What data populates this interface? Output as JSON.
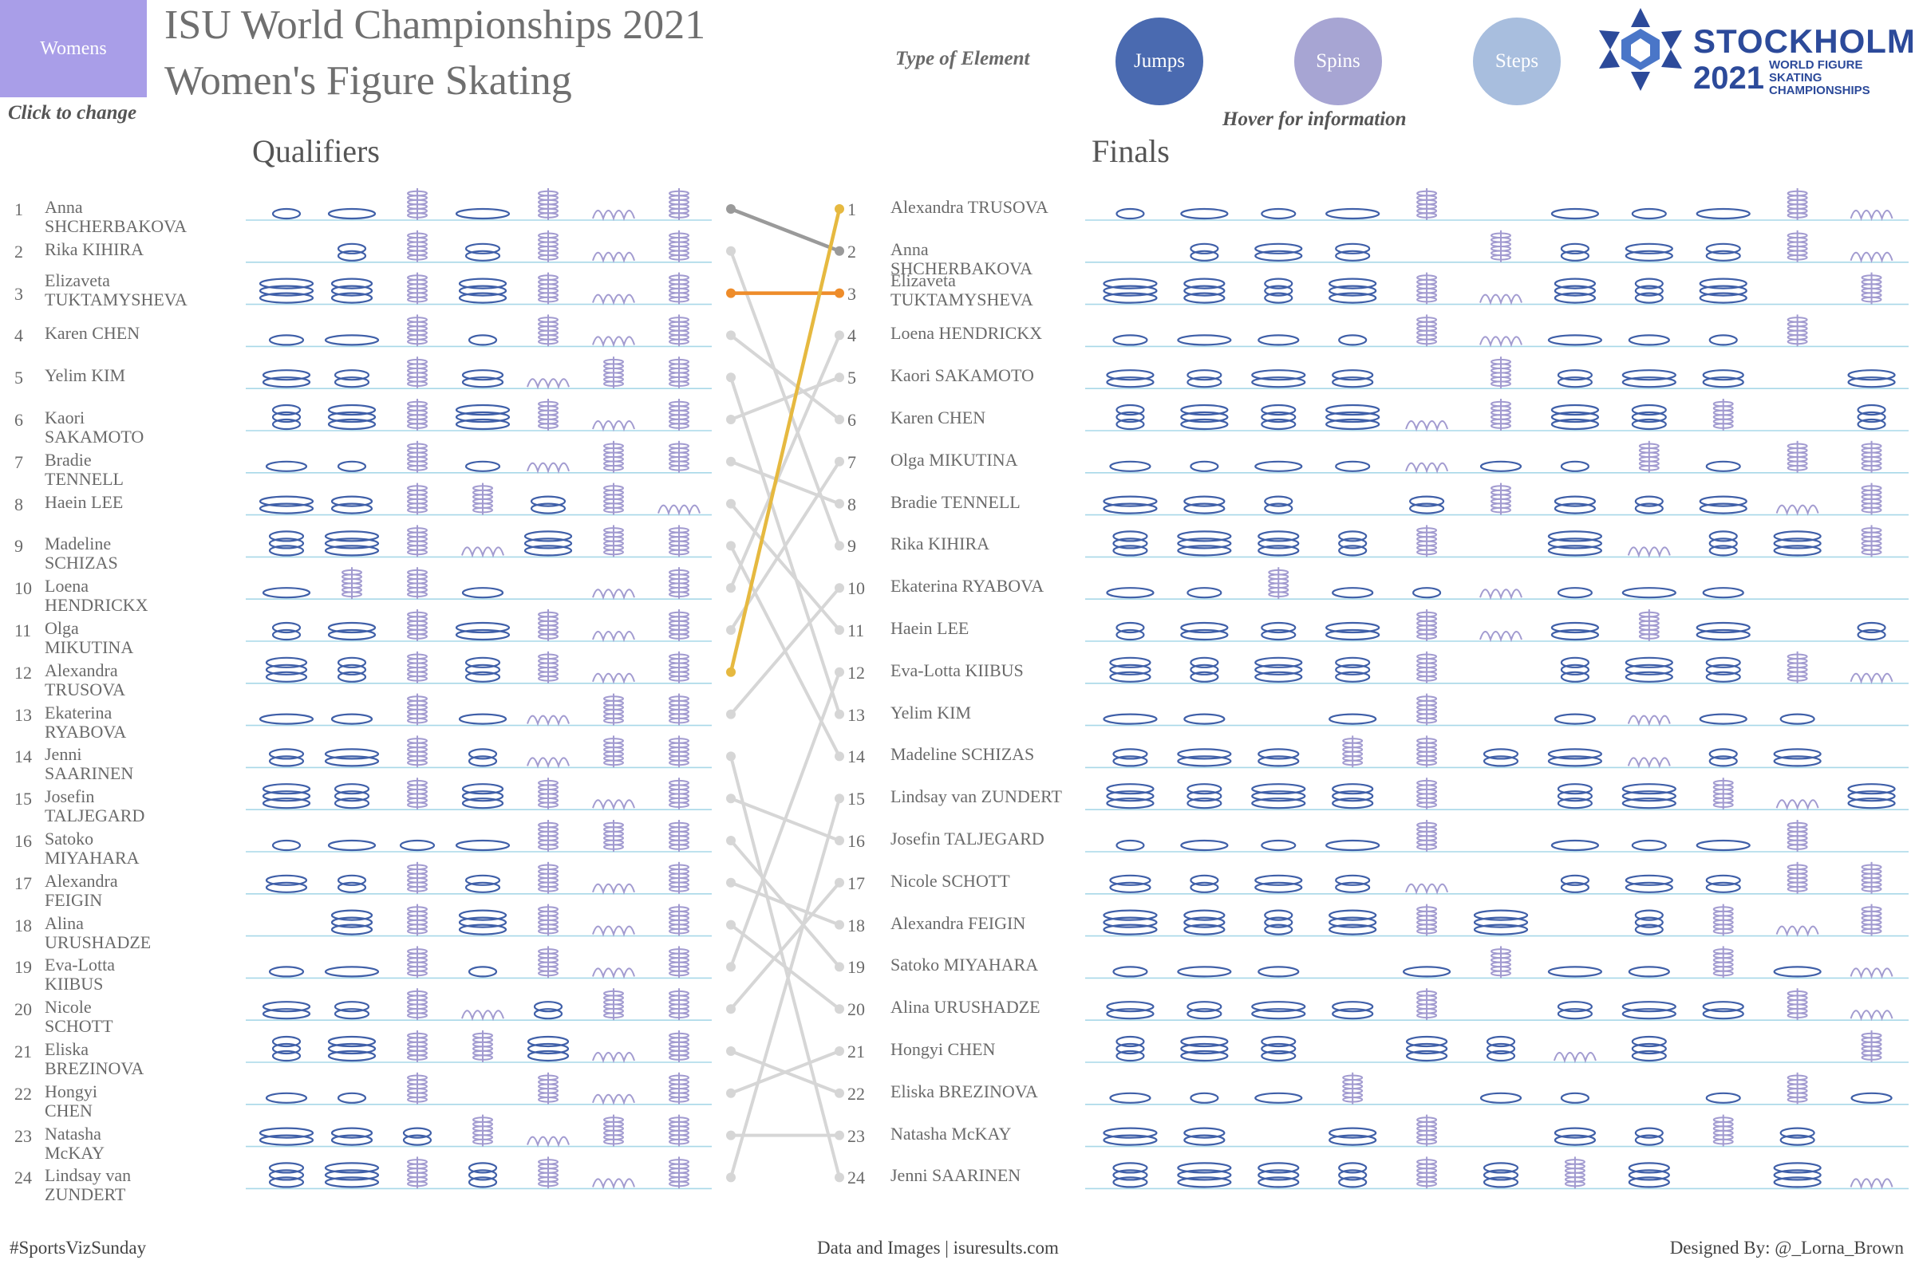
{
  "toggle_label": "Womens",
  "title_line1": "ISU World Championships 2021",
  "title_line2": "Women's Figure Skating",
  "click_hint": "Click to change",
  "type_of_element_label": "Type of Element",
  "legend": [
    {
      "label": "Jumps",
      "color": "#4a6ab0"
    },
    {
      "label": "Spins",
      "color": "#a7a5d3"
    },
    {
      "label": "Steps",
      "color": "#a8bede"
    }
  ],
  "hover_hint": "Hover for information",
  "logo": {
    "city": "STOCKHOLM",
    "year": "2021",
    "sub1": "WORLD FIGURE SKATING",
    "sub2": "CHAMPIONSHIPS"
  },
  "qualifiers_title": "Qualifiers",
  "finals_title": "Finals",
  "colors": {
    "jump": "#3f5fa8",
    "spin": "#a29bd0",
    "baseline": "#a8d8e8",
    "highlight_gold": "#e6b940",
    "highlight_orange": "#ee8c2a",
    "highlight_gray": "#9a9a9a",
    "connector": "#d6d6d6"
  },
  "qualifiers": [
    {
      "rank": 1,
      "name": "Anna SHCHERBAKOVA"
    },
    {
      "rank": 2,
      "name": "Rika KIHIRA"
    },
    {
      "rank": 3,
      "name": "Elizaveta TUKTAMYSHEVA"
    },
    {
      "rank": 4,
      "name": "Karen CHEN"
    },
    {
      "rank": 5,
      "name": "Yelim KIM"
    },
    {
      "rank": 6,
      "name": "Kaori SAKAMOTO"
    },
    {
      "rank": 7,
      "name": "Bradie TENNELL"
    },
    {
      "rank": 8,
      "name": "Haein LEE"
    },
    {
      "rank": 9,
      "name": "Madeline SCHIZAS"
    },
    {
      "rank": 10,
      "name": "Loena HENDRICKX"
    },
    {
      "rank": 11,
      "name": "Olga MIKUTINA"
    },
    {
      "rank": 12,
      "name": "Alexandra TRUSOVA"
    },
    {
      "rank": 13,
      "name": "Ekaterina RYABOVA"
    },
    {
      "rank": 14,
      "name": "Jenni SAARINEN"
    },
    {
      "rank": 15,
      "name": "Josefin TALJEGARD"
    },
    {
      "rank": 16,
      "name": "Satoko MIYAHARA"
    },
    {
      "rank": 17,
      "name": "Alexandra FEIGIN"
    },
    {
      "rank": 18,
      "name": "Alina URUSHADZE"
    },
    {
      "rank": 19,
      "name": "Eva-Lotta KIIBUS"
    },
    {
      "rank": 20,
      "name": "Nicole SCHOTT"
    },
    {
      "rank": 21,
      "name": "Eliska BREZINOVA"
    },
    {
      "rank": 22,
      "name": "Hongyi CHEN"
    },
    {
      "rank": 23,
      "name": "Natasha McKAY"
    },
    {
      "rank": 24,
      "name": "Lindsay van ZUNDERT"
    }
  ],
  "finals": [
    {
      "rank": 1,
      "name": "Alexandra TRUSOVA"
    },
    {
      "rank": 2,
      "name": "Anna SHCHERBAKOVA"
    },
    {
      "rank": 3,
      "name": "Elizaveta TUKTAMYSHEVA"
    },
    {
      "rank": 4,
      "name": "Loena HENDRICKX"
    },
    {
      "rank": 5,
      "name": "Kaori SAKAMOTO"
    },
    {
      "rank": 6,
      "name": "Karen CHEN"
    },
    {
      "rank": 7,
      "name": "Olga MIKUTINA"
    },
    {
      "rank": 8,
      "name": "Bradie TENNELL"
    },
    {
      "rank": 9,
      "name": "Rika KIHIRA"
    },
    {
      "rank": 10,
      "name": "Ekaterina RYABOVA"
    },
    {
      "rank": 11,
      "name": "Haein LEE"
    },
    {
      "rank": 12,
      "name": "Eva-Lotta KIIBUS"
    },
    {
      "rank": 13,
      "name": "Yelim KIM"
    },
    {
      "rank": 14,
      "name": "Madeline SCHIZAS"
    },
    {
      "rank": 15,
      "name": "Lindsay van ZUNDERT"
    },
    {
      "rank": 16,
      "name": "Josefin TALJEGARD"
    },
    {
      "rank": 17,
      "name": "Nicole SCHOTT"
    },
    {
      "rank": 18,
      "name": "Alexandra FEIGIN"
    },
    {
      "rank": 19,
      "name": "Satoko MIYAHARA"
    },
    {
      "rank": 20,
      "name": "Alina URUSHADZE"
    },
    {
      "rank": 21,
      "name": "Hongyi CHEN"
    },
    {
      "rank": 22,
      "name": "Eliska BREZINOVA"
    },
    {
      "rank": 23,
      "name": "Natasha McKAY"
    },
    {
      "rank": 24,
      "name": "Jenni SAARINEN"
    }
  ],
  "qualifier_elements": [
    [
      "j",
      "j",
      "s",
      "j",
      "s",
      "t",
      "s"
    ],
    [
      "",
      "j",
      "s",
      "j",
      "s",
      "t",
      "s"
    ],
    [
      "j",
      "j",
      "s",
      "j",
      "s",
      "t",
      "s"
    ],
    [
      "j",
      "j",
      "s",
      "j",
      "s",
      "t",
      "s"
    ],
    [
      "j",
      "j",
      "s",
      "j",
      "t",
      "s",
      "s"
    ],
    [
      "j",
      "j",
      "s",
      "j",
      "s",
      "t",
      "s"
    ],
    [
      "j",
      "j",
      "s",
      "j",
      "t",
      "s",
      "s"
    ],
    [
      "j",
      "j",
      "s",
      "s",
      "j",
      "s",
      "t"
    ],
    [
      "j",
      "j",
      "s",
      "t",
      "j",
      "s",
      "s"
    ],
    [
      "j",
      "s",
      "s",
      "j",
      "",
      "t",
      "s"
    ],
    [
      "j",
      "j",
      "s",
      "j",
      "s",
      "t",
      "s"
    ],
    [
      "j",
      "j",
      "s",
      "j",
      "s",
      "t",
      "s"
    ],
    [
      "j",
      "j",
      "s",
      "j",
      "t",
      "s",
      "s"
    ],
    [
      "j",
      "j",
      "s",
      "j",
      "t",
      "s",
      "s"
    ],
    [
      "j",
      "j",
      "s",
      "j",
      "s",
      "t",
      "s"
    ],
    [
      "j",
      "j",
      "j",
      "j",
      "s",
      "s",
      "s"
    ],
    [
      "j",
      "j",
      "s",
      "j",
      "s",
      "t",
      "s"
    ],
    [
      "",
      "j",
      "s",
      "j",
      "s",
      "t",
      "s"
    ],
    [
      "j",
      "j",
      "s",
      "j",
      "s",
      "t",
      "s"
    ],
    [
      "j",
      "j",
      "s",
      "t",
      "j",
      "s",
      "s"
    ],
    [
      "j",
      "j",
      "s",
      "s",
      "j",
      "t",
      "s"
    ],
    [
      "j",
      "j",
      "s",
      "",
      "s",
      "t",
      "s"
    ],
    [
      "j",
      "j",
      "j",
      "s",
      "t",
      "s",
      "s"
    ],
    [
      "j",
      "j",
      "s",
      "j",
      "s",
      "t",
      "s"
    ]
  ],
  "final_elements": [
    [
      "j",
      "j",
      "j",
      "j",
      "s",
      "",
      "j",
      "j",
      "j",
      "s",
      "t"
    ],
    [
      "",
      "j",
      "j",
      "j",
      "",
      "s",
      "j",
      "j",
      "j",
      "s",
      "t"
    ],
    [
      "j",
      "j",
      "j",
      "j",
      "s",
      "t",
      "j",
      "j",
      "j",
      "",
      "s"
    ],
    [
      "j",
      "j",
      "j",
      "j",
      "s",
      "t",
      "j",
      "j",
      "j",
      "s",
      ""
    ],
    [
      "j",
      "j",
      "j",
      "j",
      "",
      "s",
      "j",
      "j",
      "j",
      "",
      "j"
    ],
    [
      "j",
      "j",
      "j",
      "j",
      "t",
      "s",
      "j",
      "j",
      "s",
      "",
      "j"
    ],
    [
      "j",
      "j",
      "j",
      "j",
      "t",
      "j",
      "j",
      "s",
      "j",
      "s",
      "s"
    ],
    [
      "j",
      "j",
      "j",
      "",
      "j",
      "s",
      "j",
      "j",
      "j",
      "t",
      "s"
    ],
    [
      "j",
      "j",
      "j",
      "j",
      "s",
      "",
      "j",
      "t",
      "j",
      "j",
      "s"
    ],
    [
      "j",
      "j",
      "s",
      "j",
      "j",
      "t",
      "j",
      "j",
      "j",
      "",
      ""
    ],
    [
      "j",
      "j",
      "j",
      "j",
      "s",
      "t",
      "j",
      "s",
      "j",
      "",
      "j"
    ],
    [
      "j",
      "j",
      "j",
      "j",
      "s",
      "",
      "j",
      "j",
      "j",
      "s",
      "t"
    ],
    [
      "j",
      "j",
      "",
      "j",
      "s",
      "",
      "j",
      "t",
      "j",
      "j",
      ""
    ],
    [
      "j",
      "j",
      "j",
      "s",
      "s",
      "j",
      "j",
      "t",
      "j",
      "j",
      ""
    ],
    [
      "j",
      "j",
      "j",
      "j",
      "s",
      "",
      "j",
      "j",
      "s",
      "t",
      "j"
    ],
    [
      "j",
      "j",
      "j",
      "j",
      "s",
      "",
      "j",
      "j",
      "j",
      "s",
      ""
    ],
    [
      "j",
      "j",
      "j",
      "j",
      "t",
      "",
      "j",
      "j",
      "j",
      "s",
      "s"
    ],
    [
      "j",
      "j",
      "j",
      "j",
      "s",
      "j",
      "",
      "j",
      "s",
      "t",
      "s"
    ],
    [
      "j",
      "j",
      "j",
      "",
      "j",
      "s",
      "j",
      "j",
      "s",
      "j",
      "t"
    ],
    [
      "j",
      "j",
      "j",
      "j",
      "s",
      "",
      "j",
      "j",
      "j",
      "s",
      "t"
    ],
    [
      "j",
      "j",
      "j",
      "",
      "j",
      "j",
      "t",
      "j",
      "",
      "",
      "s"
    ],
    [
      "j",
      "j",
      "j",
      "s",
      "",
      "j",
      "j",
      "",
      "j",
      "s",
      "j"
    ],
    [
      "j",
      "j",
      "",
      "j",
      "s",
      "",
      "j",
      "j",
      "s",
      "j",
      ""
    ],
    [
      "j",
      "j",
      "j",
      "j",
      "s",
      "j",
      "s",
      "j",
      "",
      "j",
      "t"
    ]
  ],
  "footer_left": "#SportsVizSunday",
  "footer_mid": "Data and Images | isuresults.com",
  "footer_right": "Designed By: @_Lorna_Brown"
}
